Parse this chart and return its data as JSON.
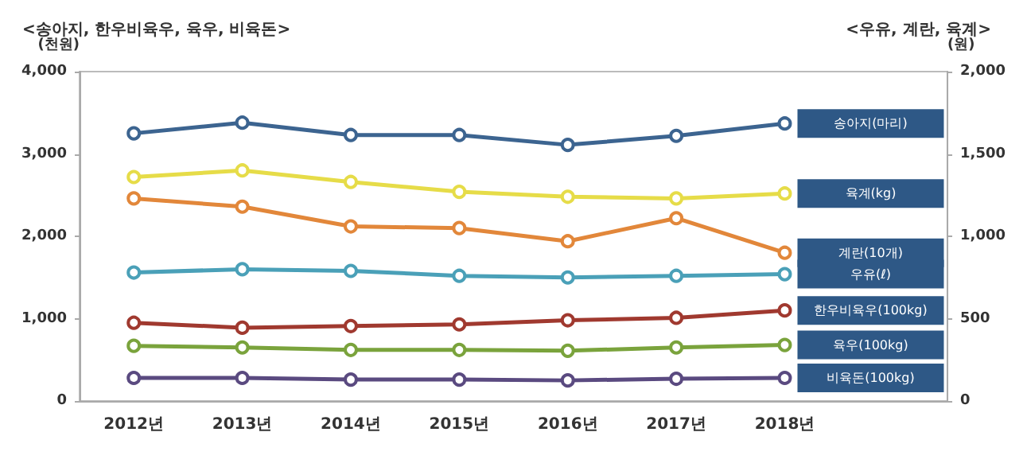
{
  "chart_data": {
    "type": "line",
    "annotations": [
      "<송아지, 한우비육우, 육우, 비육돈>",
      "<우유, 계란, 육계>"
    ],
    "ylabel": "(천원)",
    "y2label": "(원)",
    "categories": [
      "2012년",
      "2013년",
      "2014년",
      "2015년",
      "2016년",
      "2017년",
      "2018년"
    ],
    "series": [
      {
        "name": "송아지(마리)",
        "color": "#3c6490",
        "values": [
          3250,
          3380,
          3230,
          3230,
          3110,
          3220,
          3370
        ]
      },
      {
        "name": "육계(kg)",
        "color": "#e6dc48",
        "axis": "y2",
        "values": [
          1360,
          1400,
          1330,
          1270,
          1240,
          1230,
          1260
        ]
      },
      {
        "name": "계란(10개)",
        "color": "#e2873a",
        "axis": "y2",
        "values": [
          1230,
          1180,
          1060,
          1050,
          970,
          1110,
          900
        ]
      },
      {
        "name": "우유(ℓ)",
        "color": "#4aa0b8",
        "axis": "y2",
        "values": [
          780,
          800,
          790,
          760,
          750,
          760,
          770
        ]
      },
      {
        "name": "한우비육우(100kg)",
        "color": "#a0392f",
        "values": [
          950,
          890,
          910,
          930,
          980,
          1010,
          1100
        ]
      },
      {
        "name": "육우(100kg)",
        "color": "#7aa33c",
        "values": [
          670,
          650,
          620,
          620,
          610,
          650,
          680
        ]
      },
      {
        "name": "비육돈(100kg)",
        "color": "#5a4a80",
        "values": [
          280,
          280,
          260,
          260,
          250,
          270,
          280
        ]
      }
    ],
    "ylim": [
      0,
      4000
    ],
    "yticks": [
      0,
      {
        "value": 1000,
        "label": "1,000"
      },
      {
        "value": 2000,
        "label": "2,000"
      },
      {
        "value": 3000,
        "label": "3,000"
      },
      {
        "value": 4000,
        "label": "4,000"
      }
    ],
    "y2lim": [
      0,
      2000
    ],
    "y2ticks": [
      0,
      500,
      {
        "value": 1000,
        "label": "1,000"
      },
      {
        "value": 1500,
        "label": "1,500"
      },
      {
        "value": 2000,
        "label": "2,000"
      }
    ],
    "grid": false,
    "legend": false,
    "marker": "circle",
    "line_style": "solid"
  }
}
